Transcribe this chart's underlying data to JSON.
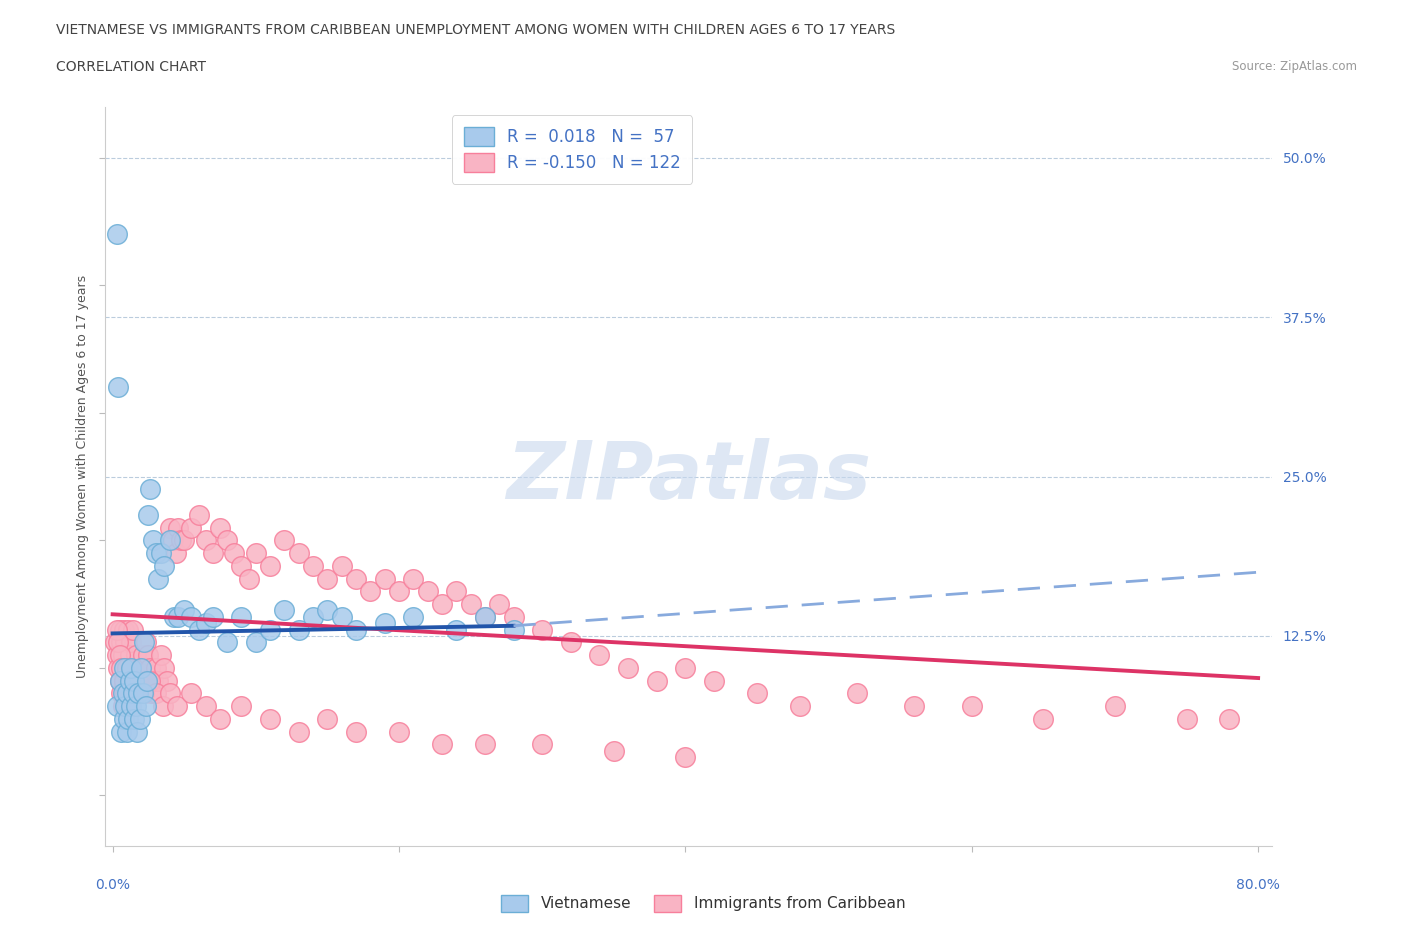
{
  "title_line1": "VIETNAMESE VS IMMIGRANTS FROM CARIBBEAN UNEMPLOYMENT AMONG WOMEN WITH CHILDREN AGES 6 TO 17 YEARS",
  "title_line2": "CORRELATION CHART",
  "source_text": "Source: ZipAtlas.com",
  "ylabel": "Unemployment Among Women with Children Ages 6 to 17 years",
  "legend_blue_r": "0.018",
  "legend_blue_n": "57",
  "legend_pink_r": "-0.150",
  "legend_pink_n": "122",
  "blue_fill": "#a8caec",
  "blue_edge": "#6baed6",
  "pink_fill": "#f9b4c4",
  "pink_edge": "#f77f9b",
  "blue_line_color": "#2255aa",
  "pink_line_color": "#dd3366",
  "blue_dashed_color": "#88aadd",
  "grid_color": "#bbccdd",
  "axis_label_color": "#4472c4",
  "title_color": "#444444",
  "source_color": "#999999",
  "ylabel_color": "#555555",
  "watermark_color": "#c8d8ee",
  "xlim_min": 0.0,
  "xlim_max": 0.8,
  "ylim_min": -0.04,
  "ylim_max": 0.54,
  "ytick_vals": [
    0.5,
    0.375,
    0.25,
    0.125
  ],
  "ytick_labels": [
    "50.0%",
    "37.5%",
    "25.0%",
    "12.5%"
  ],
  "viet_x": [
    0.003,
    0.003,
    0.005,
    0.006,
    0.007,
    0.008,
    0.008,
    0.009,
    0.01,
    0.01,
    0.011,
    0.012,
    0.013,
    0.013,
    0.014,
    0.015,
    0.015,
    0.016,
    0.017,
    0.018,
    0.019,
    0.02,
    0.021,
    0.022,
    0.023,
    0.024,
    0.025,
    0.026,
    0.028,
    0.03,
    0.032,
    0.034,
    0.036,
    0.04,
    0.043,
    0.046,
    0.05,
    0.055,
    0.06,
    0.065,
    0.07,
    0.08,
    0.09,
    0.1,
    0.11,
    0.12,
    0.13,
    0.14,
    0.15,
    0.16,
    0.17,
    0.19,
    0.21,
    0.24,
    0.26,
    0.28,
    0.004
  ],
  "viet_y": [
    0.44,
    0.07,
    0.09,
    0.05,
    0.08,
    0.06,
    0.1,
    0.07,
    0.05,
    0.08,
    0.06,
    0.09,
    0.07,
    0.1,
    0.08,
    0.06,
    0.09,
    0.07,
    0.05,
    0.08,
    0.06,
    0.1,
    0.08,
    0.12,
    0.07,
    0.09,
    0.22,
    0.24,
    0.2,
    0.19,
    0.17,
    0.19,
    0.18,
    0.2,
    0.14,
    0.14,
    0.145,
    0.14,
    0.13,
    0.135,
    0.14,
    0.12,
    0.14,
    0.12,
    0.13,
    0.145,
    0.13,
    0.14,
    0.145,
    0.14,
    0.13,
    0.135,
    0.14,
    0.13,
    0.14,
    0.13,
    0.32
  ],
  "carib_x": [
    0.002,
    0.003,
    0.004,
    0.005,
    0.005,
    0.006,
    0.006,
    0.007,
    0.007,
    0.008,
    0.008,
    0.009,
    0.009,
    0.01,
    0.01,
    0.011,
    0.011,
    0.012,
    0.012,
    0.013,
    0.013,
    0.014,
    0.014,
    0.015,
    0.015,
    0.016,
    0.017,
    0.018,
    0.019,
    0.02,
    0.021,
    0.022,
    0.023,
    0.024,
    0.025,
    0.026,
    0.027,
    0.028,
    0.03,
    0.032,
    0.034,
    0.036,
    0.038,
    0.04,
    0.042,
    0.044,
    0.046,
    0.048,
    0.05,
    0.055,
    0.06,
    0.065,
    0.07,
    0.075,
    0.08,
    0.085,
    0.09,
    0.095,
    0.1,
    0.11,
    0.12,
    0.13,
    0.14,
    0.15,
    0.16,
    0.17,
    0.18,
    0.19,
    0.2,
    0.21,
    0.22,
    0.23,
    0.24,
    0.25,
    0.26,
    0.27,
    0.28,
    0.3,
    0.32,
    0.34,
    0.36,
    0.38,
    0.4,
    0.42,
    0.45,
    0.48,
    0.52,
    0.56,
    0.6,
    0.65,
    0.7,
    0.75,
    0.78,
    0.003,
    0.004,
    0.005,
    0.006,
    0.008,
    0.01,
    0.012,
    0.015,
    0.018,
    0.022,
    0.026,
    0.03,
    0.035,
    0.04,
    0.045,
    0.055,
    0.065,
    0.075,
    0.09,
    0.11,
    0.13,
    0.15,
    0.17,
    0.2,
    0.23,
    0.26,
    0.3,
    0.35,
    0.4
  ],
  "carib_y": [
    0.12,
    0.11,
    0.1,
    0.09,
    0.13,
    0.08,
    0.12,
    0.07,
    0.11,
    0.09,
    0.13,
    0.08,
    0.12,
    0.07,
    0.1,
    0.09,
    0.13,
    0.08,
    0.11,
    0.07,
    0.12,
    0.09,
    0.13,
    0.08,
    0.1,
    0.11,
    0.09,
    0.08,
    0.1,
    0.09,
    0.11,
    0.1,
    0.12,
    0.09,
    0.11,
    0.1,
    0.08,
    0.09,
    0.1,
    0.09,
    0.11,
    0.1,
    0.09,
    0.21,
    0.2,
    0.19,
    0.21,
    0.2,
    0.2,
    0.21,
    0.22,
    0.2,
    0.19,
    0.21,
    0.2,
    0.19,
    0.18,
    0.17,
    0.19,
    0.18,
    0.2,
    0.19,
    0.18,
    0.17,
    0.18,
    0.17,
    0.16,
    0.17,
    0.16,
    0.17,
    0.16,
    0.15,
    0.16,
    0.15,
    0.14,
    0.15,
    0.14,
    0.13,
    0.12,
    0.11,
    0.1,
    0.09,
    0.1,
    0.09,
    0.08,
    0.07,
    0.08,
    0.07,
    0.07,
    0.06,
    0.07,
    0.06,
    0.06,
    0.13,
    0.12,
    0.11,
    0.1,
    0.09,
    0.1,
    0.09,
    0.08,
    0.09,
    0.08,
    0.09,
    0.08,
    0.07,
    0.08,
    0.07,
    0.08,
    0.07,
    0.06,
    0.07,
    0.06,
    0.05,
    0.06,
    0.05,
    0.05,
    0.04,
    0.04,
    0.04,
    0.035,
    0.03
  ],
  "viet_line_x0": 0.0,
  "viet_line_x_solid_end": 0.28,
  "viet_line_x1": 0.8,
  "viet_line_y0": 0.127,
  "viet_line_y_solid_end": 0.133,
  "viet_line_y1": 0.175,
  "carib_line_x0": 0.0,
  "carib_line_x1": 0.8,
  "carib_line_y0": 0.142,
  "carib_line_y1": 0.092
}
